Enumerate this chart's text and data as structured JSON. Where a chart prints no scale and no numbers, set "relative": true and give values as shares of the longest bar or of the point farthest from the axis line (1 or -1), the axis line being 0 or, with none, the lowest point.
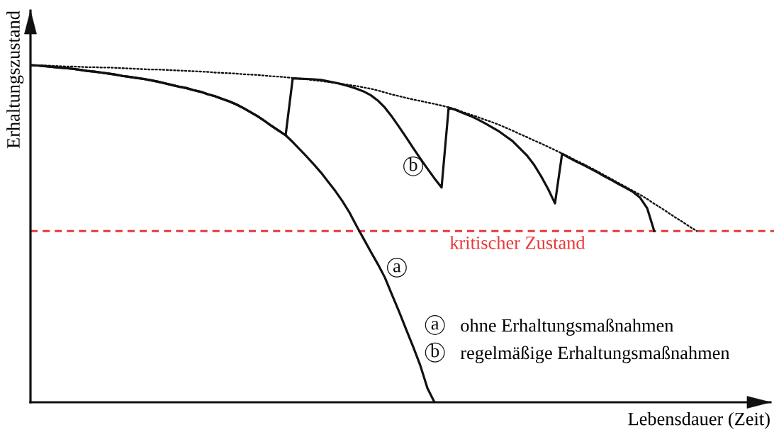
{
  "chart_data": {
    "type": "line",
    "relative": true,
    "tick_labels": false,
    "legend": "bottom right",
    "xlabel": "Lebensdauer (Zeit)",
    "ylabel": "Erhaltungszustand",
    "categories": [
      null,
      null,
      null,
      null,
      null,
      null,
      null,
      null,
      null,
      null,
      null,
      null,
      null,
      null,
      null,
      null,
      null,
      null,
      null,
      null,
      null,
      null,
      null,
      null,
      null,
      null,
      null,
      null,
      null,
      null,
      null,
      null,
      null,
      null,
      null,
      null,
      null,
      null,
      null,
      null,
      null,
      null,
      null,
      null,
      null,
      null,
      null,
      null,
      null,
      null,
      null,
      null,
      null,
      null,
      null,
      null,
      null,
      null,
      null,
      null,
      null,
      null,
      null,
      null,
      null,
      null,
      null,
      null,
      null,
      null,
      null,
      null,
      null,
      null,
      null,
      null,
      null,
      null,
      null,
      null,
      null,
      null,
      null,
      null,
      null,
      null,
      null,
      null,
      null,
      null,
      null,
      null,
      null,
      null,
      null,
      null,
      null,
      null,
      null,
      null,
      null,
      null,
      null,
      null,
      null
    ],
    "series": [
      {
        "name": "a",
        "color": "#111111",
        "values": [
          1,
          0.999,
          0.997,
          0.995,
          0.993,
          0.991,
          0.989,
          0.986,
          0.983,
          0.981,
          0.978,
          0.975,
          0.972,
          0.968,
          0.965,
          0.962,
          0.959,
          0.955,
          0.951,
          0.946,
          0.941,
          0.936,
          0.932,
          0.926,
          0.921,
          0.914,
          0.908,
          0.9,
          0.893,
          0.884,
          0.873,
          0.861,
          0.849,
          0.835,
          0.82,
          0.806,
          0.792,
          0.772,
          0.75,
          0.728,
          0.705,
          0.681,
          0.654,
          0.627,
          0.597,
          0.563,
          0.523,
          0.485,
          0.447,
          0.41,
          0.37,
          0.319,
          0.269,
          0.216,
          0.164,
          0.109,
          0.042,
          0,
          null,
          null,
          null,
          null,
          null,
          null,
          null,
          null,
          null,
          null,
          null,
          null,
          null,
          null,
          null,
          null,
          null,
          null,
          null,
          null,
          null,
          null,
          null,
          null,
          null,
          null,
          null,
          null,
          null,
          null,
          null,
          null,
          null,
          null,
          null,
          null,
          null,
          null,
          null,
          null,
          null,
          null,
          null,
          null,
          null,
          null,
          null
        ]
      },
      {
        "name": "b",
        "color": "#111111",
        "values": [
          1,
          0.999,
          0.997,
          0.995,
          0.993,
          0.991,
          0.989,
          0.986,
          0.983,
          0.981,
          0.978,
          0.975,
          0.972,
          0.968,
          0.965,
          0.962,
          0.959,
          0.955,
          0.951,
          0.946,
          0.941,
          0.936,
          0.932,
          0.926,
          0.921,
          0.914,
          0.908,
          0.9,
          0.893,
          0.884,
          0.873,
          0.861,
          0.849,
          0.835,
          0.82,
          0.806,
          0.792,
          0.961,
          0.96,
          0.959,
          0.958,
          0.956,
          0.952,
          0.948,
          0.943,
          0.937,
          0.93,
          0.922,
          0.911,
          0.895,
          0.874,
          0.847,
          0.817,
          0.786,
          0.754,
          0.723,
          0.693,
          0.664,
          0.637,
          0.874,
          0.867,
          0.858,
          0.85,
          0.84,
          0.829,
          0.817,
          0.805,
          0.79,
          0.775,
          0.754,
          0.733,
          0.706,
          0.672,
          0.634,
          0.59,
          0.737,
          0.725,
          0.714,
          0.704,
          0.693,
          0.682,
          0.67,
          0.659,
          0.647,
          0.636,
          0.624,
          0.607,
          0.576,
          0.508,
          null,
          null,
          null,
          null,
          null,
          null,
          null,
          null,
          null,
          null,
          null,
          null,
          null,
          null,
          null,
          null
        ]
      },
      {
        "color": "#111111",
        "line_style": "dotted",
        "values": [
          1,
          0.999,
          0.999,
          0.998,
          0.997,
          0.996,
          0.996,
          0.995,
          0.994,
          0.994,
          0.993,
          0.993,
          0.992,
          0.991,
          0.99,
          0.989,
          0.988,
          0.987,
          0.987,
          0.986,
          0.985,
          0.984,
          0.983,
          0.982,
          0.981,
          0.98,
          0.978,
          0.977,
          0.976,
          0.975,
          0.973,
          0.972,
          0.971,
          0.969,
          0.967,
          0.966,
          0.964,
          0.962,
          0.96,
          0.958,
          0.955,
          0.953,
          0.95,
          0.947,
          0.944,
          0.941,
          0.938,
          0.934,
          0.93,
          0.925,
          0.919,
          0.913,
          0.908,
          0.903,
          0.898,
          0.894,
          0.889,
          0.885,
          0.88,
          0.875,
          0.869,
          0.861,
          0.854,
          0.847,
          0.839,
          0.832,
          0.824,
          0.815,
          0.806,
          0.796,
          0.787,
          0.777,
          0.768,
          0.758,
          0.748,
          0.738,
          0.728,
          0.717,
          0.707,
          0.696,
          0.685,
          0.673,
          0.662,
          0.65,
          0.639,
          0.627,
          0.616,
          0.603,
          0.589,
          0.576,
          0.562,
          0.548,
          0.535,
          0.521,
          0.508,
          null,
          null,
          null,
          null,
          null,
          null,
          null,
          null,
          null,
          null
        ]
      }
    ],
    "ref_lines": [
      {
        "axis": "y",
        "value": 0.508,
        "label": "kritischer Zustand",
        "color": "#e8383a",
        "line_style": "dashed"
      }
    ],
    "annotations": [
      "ohne Erhaltungsmaßnahmen",
      "regelmäßige Erhaltungsmaßnahmen"
    ]
  }
}
